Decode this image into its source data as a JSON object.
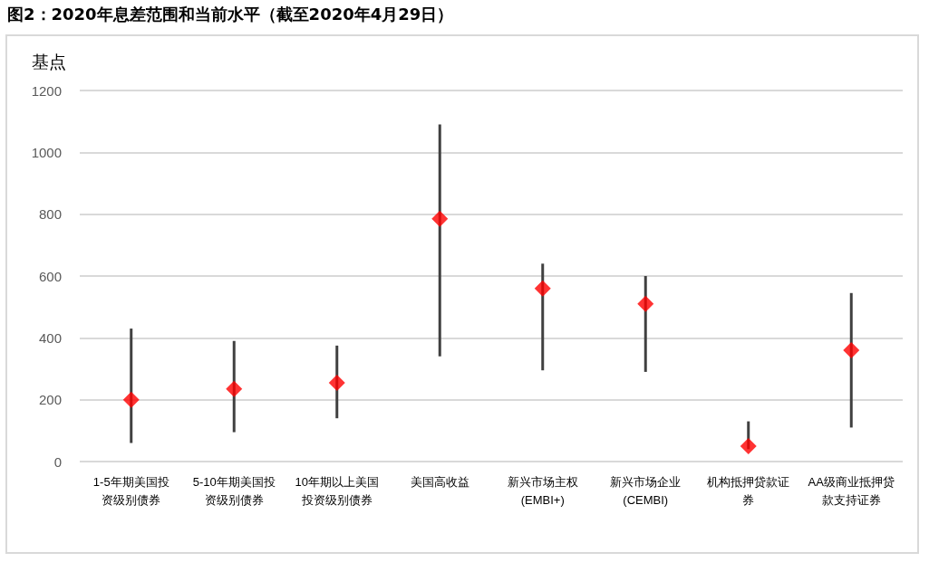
{
  "chart_data": {
    "type": "bar",
    "title": "图2：2020年息差范围和当前水平（截至2020年4月29日）",
    "ylabel": "基点",
    "categories": [
      "1-5年期美国投资级别债券",
      "5-10年期美国投资级别债券",
      "10年期以上美国投资级别债券",
      "美国高收益",
      "新兴市场主权\n(EMBI+)",
      "新兴市场企业\n(CEMBI)",
      "机构抵押贷款证券",
      "AA级商业抵押贷款支持证券"
    ],
    "series": [
      {
        "type": "bar",
        "color": "#404040",
        "base": [
          60,
          95,
          140,
          340,
          295,
          290,
          40,
          110
        ],
        "values": [
          370,
          295,
          235,
          750,
          345,
          310,
          90,
          435
        ]
      },
      {
        "type": "scatter",
        "color": "#ff0000",
        "values": [
          200,
          235,
          255,
          785,
          560,
          510,
          50,
          360
        ]
      }
    ],
    "marker": "diamond",
    "ylim": [
      0,
      1200
    ],
    "yticks": [
      0,
      200,
      400,
      600,
      800,
      1000,
      1200
    ],
    "grid": "y"
  }
}
